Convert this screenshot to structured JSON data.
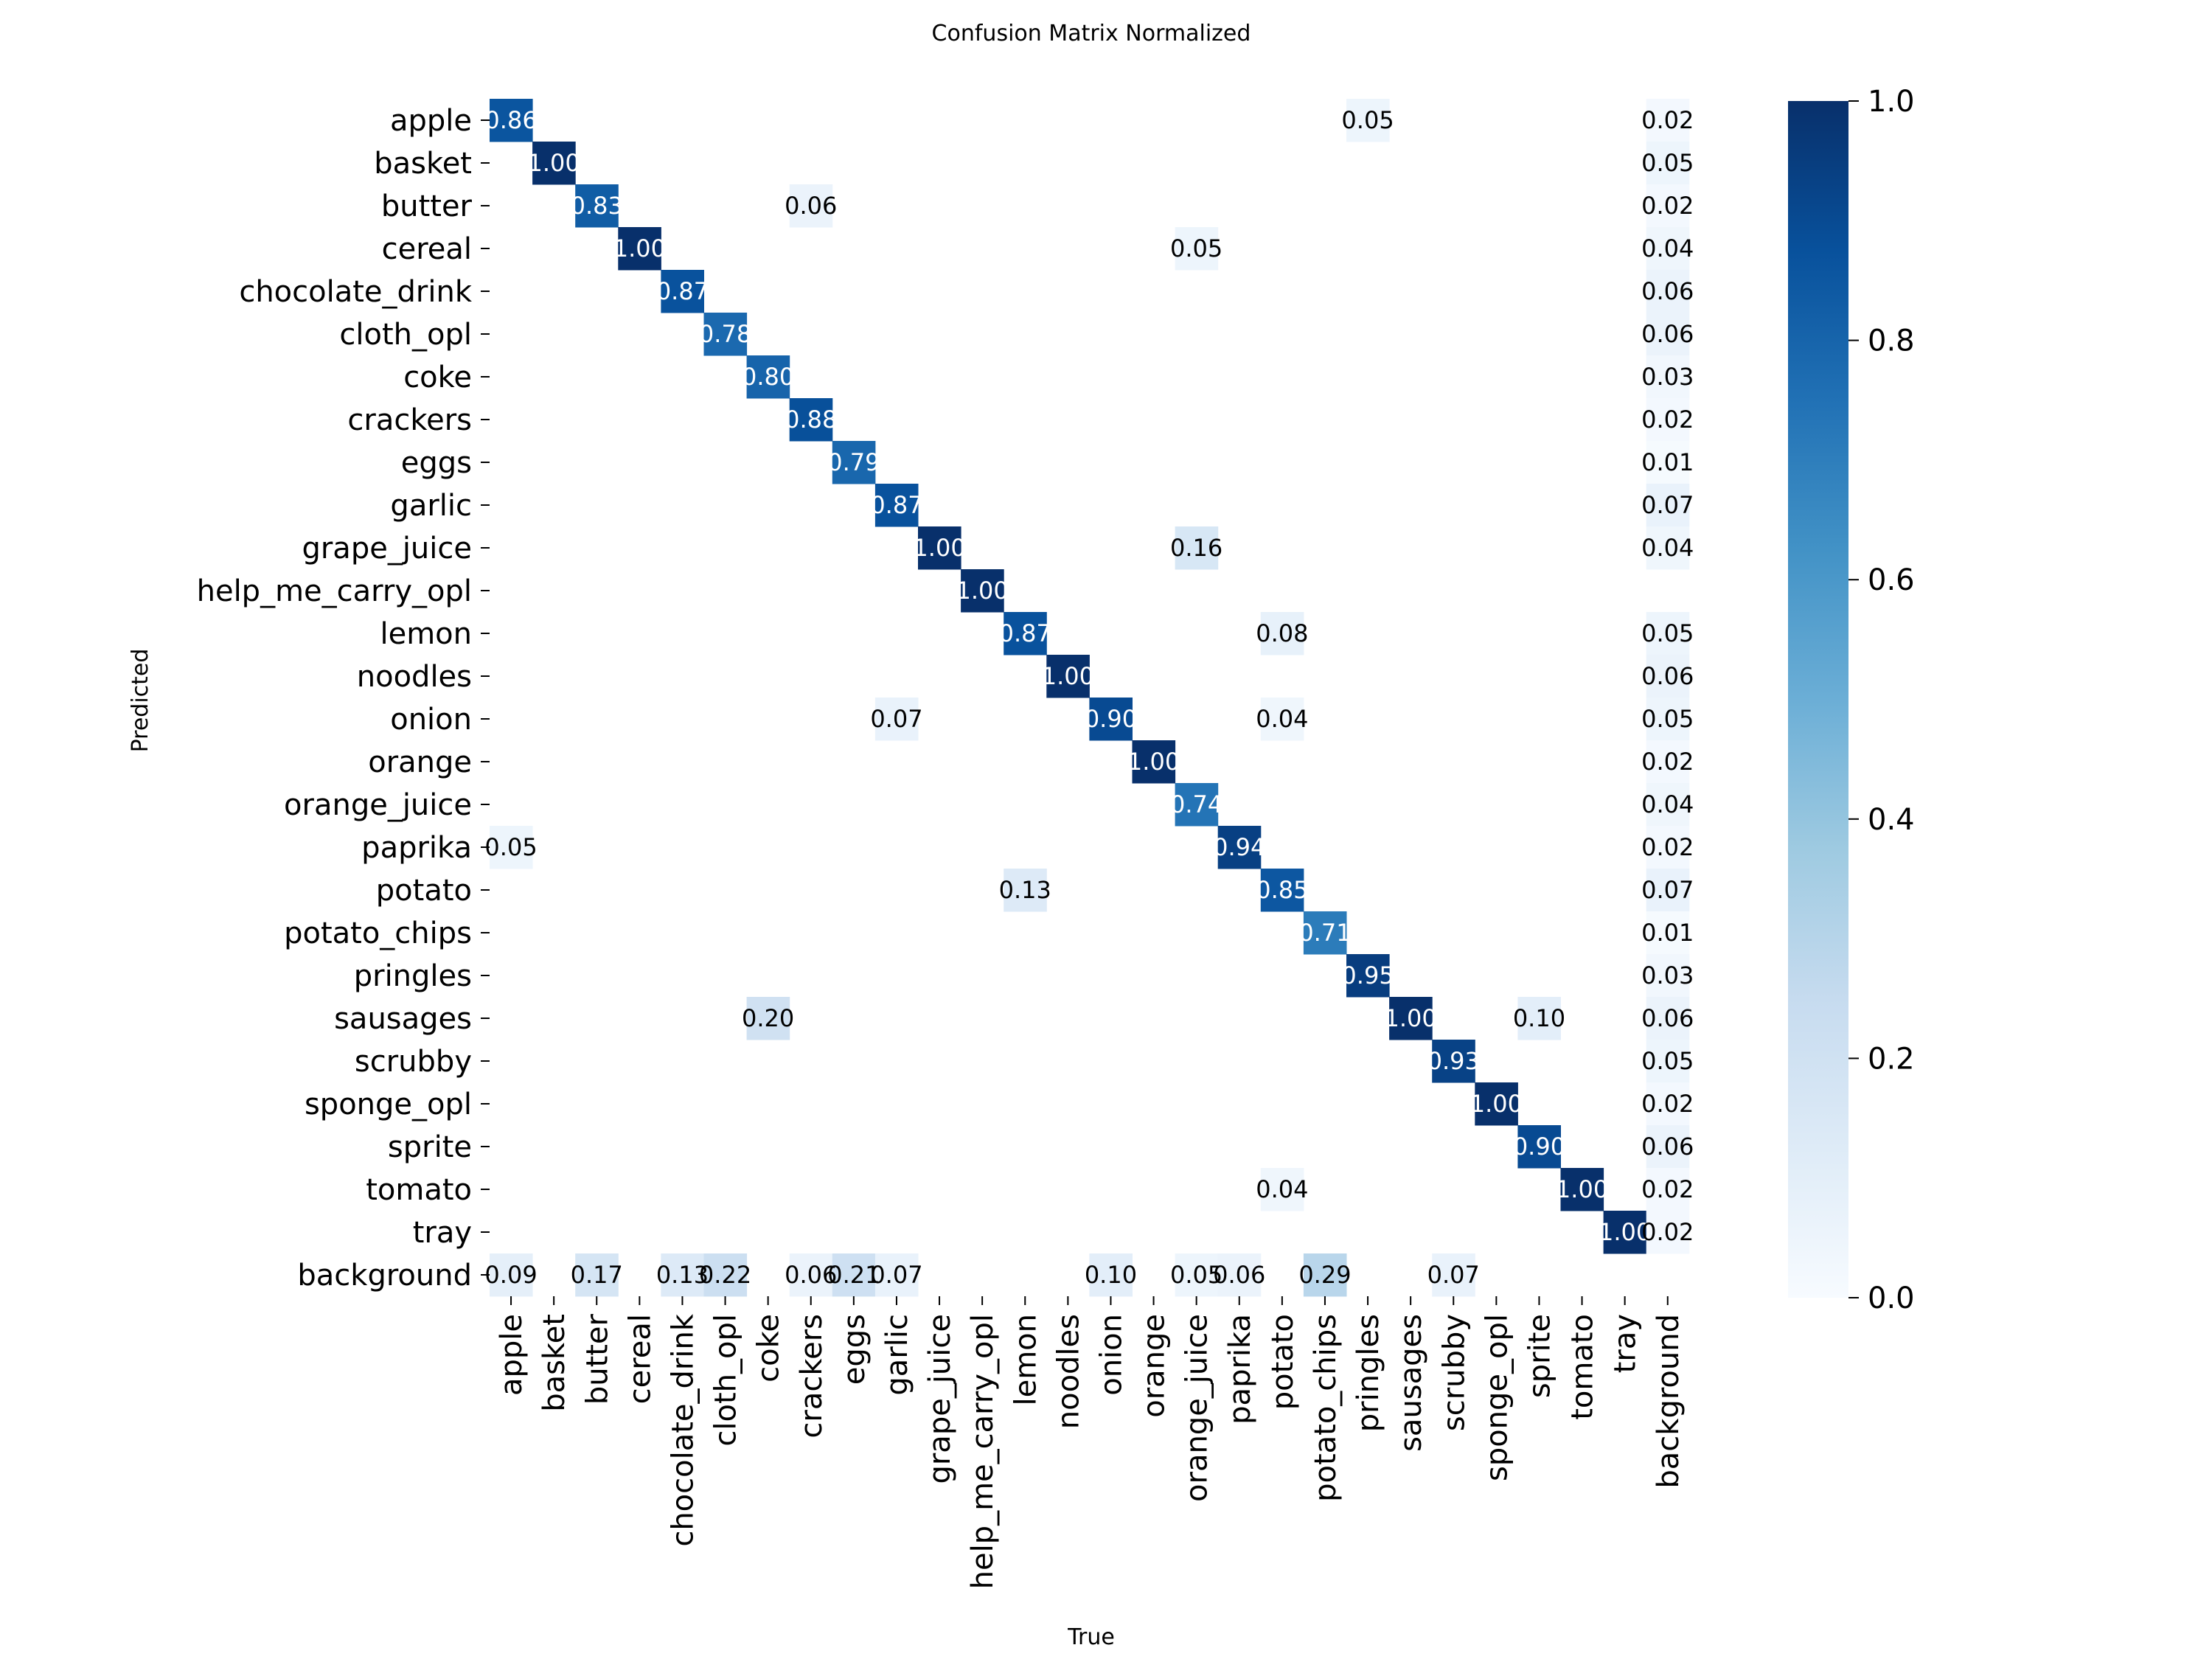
{
  "chart_data": {
    "type": "heatmap",
    "title": "Confusion Matrix Normalized",
    "xlabel": "True",
    "ylabel": "Predicted",
    "categories": [
      "apple",
      "basket",
      "butter",
      "cereal",
      "chocolate_drink",
      "cloth_opl",
      "coke",
      "crackers",
      "eggs",
      "garlic",
      "grape_juice",
      "help_me_carry_opl",
      "lemon",
      "noodles",
      "onion",
      "orange",
      "orange_juice",
      "paprika",
      "potato",
      "potato_chips",
      "pringles",
      "sausages",
      "scrubby",
      "sponge_opl",
      "sprite",
      "tomato",
      "tray",
      "background"
    ],
    "colorbar": {
      "range": [
        0,
        1
      ],
      "ticks": [
        "0.0",
        "0.2",
        "0.4",
        "0.6",
        "0.8",
        "1.0"
      ],
      "colormap": "Blues"
    },
    "cells": [
      {
        "row": "apple",
        "col": "apple",
        "value": 0.86
      },
      {
        "row": "apple",
        "col": "pringles",
        "value": 0.05
      },
      {
        "row": "apple",
        "col": "background",
        "value": 0.02
      },
      {
        "row": "basket",
        "col": "basket",
        "value": 1.0
      },
      {
        "row": "basket",
        "col": "background",
        "value": 0.05
      },
      {
        "row": "butter",
        "col": "butter",
        "value": 0.83
      },
      {
        "row": "butter",
        "col": "crackers",
        "value": 0.06
      },
      {
        "row": "butter",
        "col": "background",
        "value": 0.02
      },
      {
        "row": "cereal",
        "col": "cereal",
        "value": 1.0
      },
      {
        "row": "cereal",
        "col": "orange_juice",
        "value": 0.05
      },
      {
        "row": "cereal",
        "col": "background",
        "value": 0.04
      },
      {
        "row": "chocolate_drink",
        "col": "chocolate_drink",
        "value": 0.87
      },
      {
        "row": "chocolate_drink",
        "col": "background",
        "value": 0.06
      },
      {
        "row": "cloth_opl",
        "col": "cloth_opl",
        "value": 0.78
      },
      {
        "row": "cloth_opl",
        "col": "background",
        "value": 0.06
      },
      {
        "row": "coke",
        "col": "coke",
        "value": 0.8
      },
      {
        "row": "coke",
        "col": "background",
        "value": 0.03
      },
      {
        "row": "crackers",
        "col": "crackers",
        "value": 0.88
      },
      {
        "row": "crackers",
        "col": "background",
        "value": 0.02
      },
      {
        "row": "eggs",
        "col": "eggs",
        "value": 0.79
      },
      {
        "row": "eggs",
        "col": "background",
        "value": 0.01
      },
      {
        "row": "garlic",
        "col": "garlic",
        "value": 0.87
      },
      {
        "row": "garlic",
        "col": "background",
        "value": 0.07
      },
      {
        "row": "grape_juice",
        "col": "grape_juice",
        "value": 1.0
      },
      {
        "row": "grape_juice",
        "col": "orange_juice",
        "value": 0.16
      },
      {
        "row": "grape_juice",
        "col": "background",
        "value": 0.04
      },
      {
        "row": "help_me_carry_opl",
        "col": "help_me_carry_opl",
        "value": 1.0
      },
      {
        "row": "lemon",
        "col": "lemon",
        "value": 0.87
      },
      {
        "row": "lemon",
        "col": "potato",
        "value": 0.08
      },
      {
        "row": "lemon",
        "col": "background",
        "value": 0.05
      },
      {
        "row": "noodles",
        "col": "noodles",
        "value": 1.0
      },
      {
        "row": "noodles",
        "col": "background",
        "value": 0.06
      },
      {
        "row": "onion",
        "col": "garlic",
        "value": 0.07
      },
      {
        "row": "onion",
        "col": "onion",
        "value": 0.9
      },
      {
        "row": "onion",
        "col": "potato",
        "value": 0.04
      },
      {
        "row": "onion",
        "col": "background",
        "value": 0.05
      },
      {
        "row": "orange",
        "col": "orange",
        "value": 1.0
      },
      {
        "row": "orange",
        "col": "background",
        "value": 0.02
      },
      {
        "row": "orange_juice",
        "col": "orange_juice",
        "value": 0.74
      },
      {
        "row": "orange_juice",
        "col": "background",
        "value": 0.04
      },
      {
        "row": "paprika",
        "col": "apple",
        "value": 0.05
      },
      {
        "row": "paprika",
        "col": "paprika",
        "value": 0.94
      },
      {
        "row": "paprika",
        "col": "background",
        "value": 0.02
      },
      {
        "row": "potato",
        "col": "lemon",
        "value": 0.13
      },
      {
        "row": "potato",
        "col": "potato",
        "value": 0.85
      },
      {
        "row": "potato",
        "col": "background",
        "value": 0.07
      },
      {
        "row": "potato_chips",
        "col": "potato_chips",
        "value": 0.71
      },
      {
        "row": "potato_chips",
        "col": "background",
        "value": 0.01
      },
      {
        "row": "pringles",
        "col": "pringles",
        "value": 0.95
      },
      {
        "row": "pringles",
        "col": "background",
        "value": 0.03
      },
      {
        "row": "sausages",
        "col": "coke",
        "value": 0.2
      },
      {
        "row": "sausages",
        "col": "sausages",
        "value": 1.0
      },
      {
        "row": "sausages",
        "col": "sprite",
        "value": 0.1
      },
      {
        "row": "sausages",
        "col": "background",
        "value": 0.06
      },
      {
        "row": "scrubby",
        "col": "scrubby",
        "value": 0.93
      },
      {
        "row": "scrubby",
        "col": "background",
        "value": 0.05
      },
      {
        "row": "sponge_opl",
        "col": "sponge_opl",
        "value": 1.0
      },
      {
        "row": "sponge_opl",
        "col": "background",
        "value": 0.02
      },
      {
        "row": "sprite",
        "col": "sprite",
        "value": 0.9
      },
      {
        "row": "sprite",
        "col": "background",
        "value": 0.06
      },
      {
        "row": "tomato",
        "col": "potato",
        "value": 0.04
      },
      {
        "row": "tomato",
        "col": "tomato",
        "value": 1.0
      },
      {
        "row": "tomato",
        "col": "background",
        "value": 0.02
      },
      {
        "row": "tray",
        "col": "tray",
        "value": 1.0
      },
      {
        "row": "tray",
        "col": "background",
        "value": 0.02
      },
      {
        "row": "background",
        "col": "apple",
        "value": 0.09
      },
      {
        "row": "background",
        "col": "butter",
        "value": 0.17
      },
      {
        "row": "background",
        "col": "chocolate_drink",
        "value": 0.13
      },
      {
        "row": "background",
        "col": "cloth_opl",
        "value": 0.22
      },
      {
        "row": "background",
        "col": "crackers",
        "value": 0.06
      },
      {
        "row": "background",
        "col": "eggs",
        "value": 0.21
      },
      {
        "row": "background",
        "col": "garlic",
        "value": 0.07
      },
      {
        "row": "background",
        "col": "onion",
        "value": 0.1
      },
      {
        "row": "background",
        "col": "orange_juice",
        "value": 0.05
      },
      {
        "row": "background",
        "col": "paprika",
        "value": 0.06
      },
      {
        "row": "background",
        "col": "potato_chips",
        "value": 0.29
      },
      {
        "row": "background",
        "col": "scrubby",
        "value": 0.07
      }
    ]
  }
}
